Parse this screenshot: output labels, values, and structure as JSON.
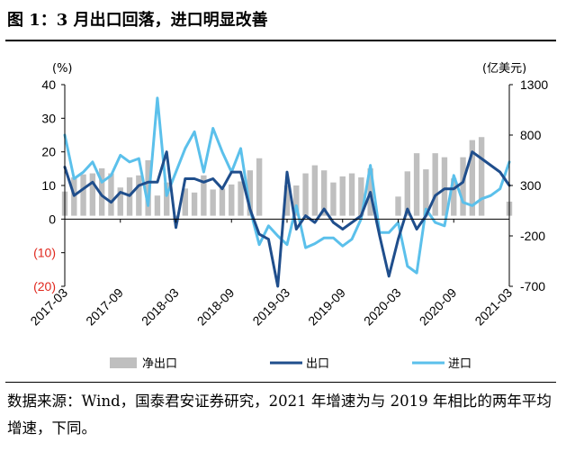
{
  "figure": {
    "title": "图 1：3 月出口回落，进口明显改善",
    "source": "数据来源：Wind，国泰君安证券研究，2021 年增速为与 2019 年相比的两年平均增速，下同。"
  },
  "colors": {
    "bar": "#bfbfbf",
    "export": "#1f4e8c",
    "import": "#5bc0eb",
    "negative": "#e0281e"
  },
  "chart_data": {
    "type": "bar+line",
    "months": [
      "2017-03",
      "2017-04",
      "2017-05",
      "2017-06",
      "2017-07",
      "2017-08",
      "2017-09",
      "2017-10",
      "2017-11",
      "2017-12",
      "2018-01",
      "2018-02",
      "2018-03",
      "2018-04",
      "2018-05",
      "2018-06",
      "2018-07",
      "2018-08",
      "2018-09",
      "2018-10",
      "2018-11",
      "2018-12",
      "2019-01",
      "2019-02",
      "2019-03",
      "2019-04",
      "2019-05",
      "2019-06",
      "2019-07",
      "2019-08",
      "2019-09",
      "2019-10",
      "2019-11",
      "2019-12",
      "2020-01",
      "2020-02",
      "2020-03",
      "2020-04",
      "2020-05",
      "2020-06",
      "2020-07",
      "2020-08",
      "2020-09",
      "2020-10",
      "2020-11",
      "2020-12",
      "2021-01",
      "2021-02",
      "2021-03"
    ],
    "x_tick_labels": [
      "2017-03",
      "2017-09",
      "2018-03",
      "2018-09",
      "2019-03",
      "2019-09",
      "2020-03",
      "2020-09",
      "2021-03"
    ],
    "left_axis": {
      "unit": "(%)",
      "ticks": [
        "40",
        "30",
        "20",
        "10",
        "0",
        "(10)",
        "(20)"
      ],
      "min": -20,
      "max": 40
    },
    "right_axis": {
      "unit": "(亿美元)",
      "ticks": [
        "1300",
        "800",
        "300",
        "-200",
        "-700"
      ],
      "min": -700,
      "max": 1300
    },
    "series": [
      {
        "name": "净出口",
        "kind": "bar",
        "axis": "right",
        "values": [
          240,
          380,
          410,
          420,
          470,
          420,
          280,
          380,
          400,
          550,
          200,
          330,
          -60,
          270,
          230,
          400,
          260,
          270,
          310,
          340,
          450,
          570,
          null,
          null,
          300,
          300,
          420,
          500,
          450,
          330,
          390,
          420,
          380,
          470,
          null,
          null,
          190,
          440,
          620,
          460,
          620,
          580,
          370,
          580,
          750,
          780,
          null,
          null,
          140
        ]
      },
      {
        "name": "出口",
        "kind": "line",
        "axis": "left",
        "values": [
          15.5,
          7,
          9,
          11,
          7,
          5,
          8,
          7,
          10,
          11,
          11,
          20,
          -2.5,
          12,
          12,
          11,
          12,
          9,
          14,
          14,
          3,
          -4.5,
          -6,
          -20,
          14,
          -3,
          1,
          -1,
          3,
          -1,
          -3,
          -1,
          1,
          8,
          -5,
          -17,
          -6,
          3,
          -3,
          1,
          7,
          9,
          9,
          11,
          20,
          18,
          16,
          14,
          10
        ]
      },
      {
        "name": "进口",
        "kind": "line",
        "axis": "left",
        "values": [
          25,
          12,
          14,
          17,
          11,
          13,
          19,
          17,
          18,
          4,
          36,
          7,
          14,
          21,
          26,
          14,
          27,
          20,
          14,
          21,
          3,
          -7.6,
          -2,
          -5,
          -7.6,
          4,
          -8.5,
          -7.3,
          -5.6,
          -5.6,
          -8,
          -6,
          0,
          16,
          -4,
          -4,
          -1,
          -14,
          -16,
          3,
          -1,
          -2,
          13,
          5,
          4,
          6,
          7,
          9,
          17
        ]
      }
    ]
  }
}
